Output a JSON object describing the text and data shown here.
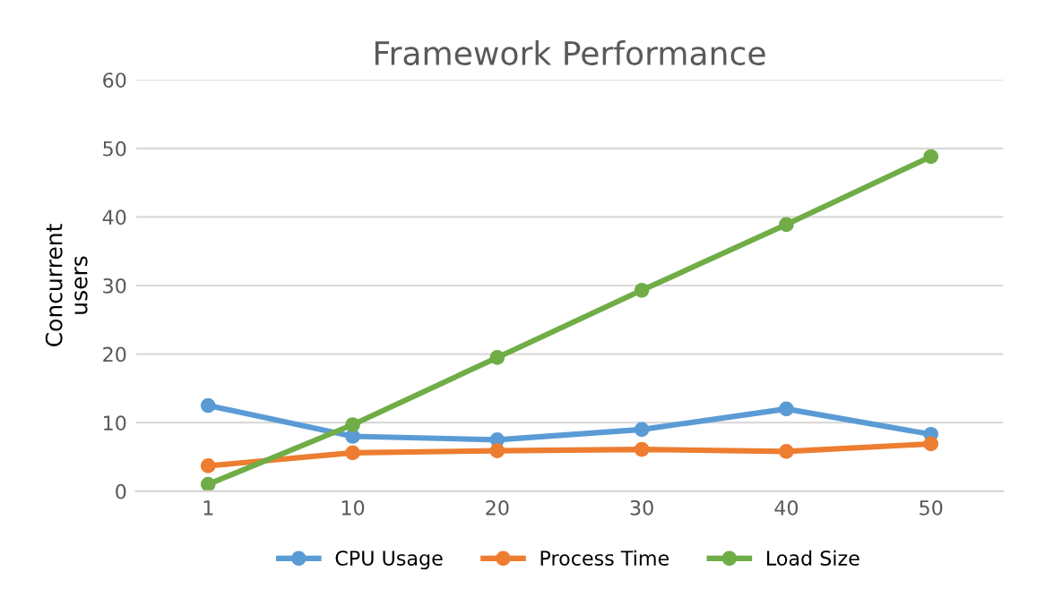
{
  "chart_data": {
    "type": "line",
    "title": "Framework Performance",
    "ylabel": "Concurrent\nusers",
    "categories": [
      "1",
      "10",
      "20",
      "30",
      "40",
      "50"
    ],
    "series": [
      {
        "name": "CPU Usage",
        "color": "#5b9bd5",
        "values": [
          12.5,
          8,
          7.5,
          9,
          12,
          8.3
        ]
      },
      {
        "name": "Process Time",
        "color": "#ed7d31",
        "values": [
          3.7,
          5.6,
          5.9,
          6.1,
          5.8,
          6.9
        ]
      },
      {
        "name": "Load Size",
        "color": "#70ad47",
        "values": [
          1,
          9.7,
          19.5,
          29.3,
          38.9,
          48.8
        ]
      }
    ],
    "ylim": [
      0,
      60
    ],
    "yticks": [
      0,
      10,
      20,
      30,
      40,
      50,
      60
    ],
    "grid": "y",
    "legend": "bottom",
    "marker": "circle",
    "line_style": "solid"
  }
}
